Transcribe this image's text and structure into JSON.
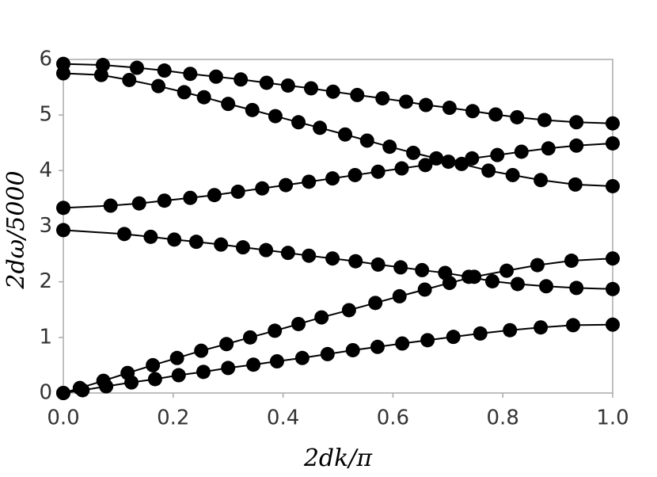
{
  "chart_data": {
    "type": "line",
    "xlabel": "2dk/π",
    "ylabel": "2dω/5000",
    "xlim": [
      0,
      1
    ],
    "ylim": [
      0,
      6
    ],
    "xticks": [
      {
        "value": 0,
        "label": "0.0"
      },
      0.2,
      0.4,
      0.6,
      0.8,
      {
        "value": 1,
        "label": "1.0"
      }
    ],
    "yticks": [
      0,
      1,
      2,
      3,
      4,
      5,
      6
    ],
    "markers": true,
    "series": [
      {
        "color": "#000000",
        "x": [
          0,
          0.072,
          0.134,
          0.184,
          0.231,
          0.278,
          0.323,
          0.37,
          0.409,
          0.451,
          0.491,
          0.535,
          0.581,
          0.624,
          0.66,
          0.703,
          0.745,
          0.787,
          0.826,
          0.876,
          0.934,
          1
        ],
        "y": [
          5.92,
          5.9,
          5.85,
          5.8,
          5.74,
          5.69,
          5.64,
          5.58,
          5.53,
          5.48,
          5.42,
          5.36,
          5.3,
          5.24,
          5.18,
          5.13,
          5.07,
          5.01,
          4.96,
          4.91,
          4.87,
          4.85
        ]
      },
      {
        "color": "#000000",
        "x": [
          0,
          0.069,
          0.12,
          0.173,
          0.22,
          0.256,
          0.3,
          0.344,
          0.386,
          0.428,
          0.467,
          0.513,
          0.553,
          0.594,
          0.637,
          0.679,
          0.725,
          0.774,
          0.818,
          0.869,
          0.932,
          1
        ],
        "y": [
          5.75,
          5.72,
          5.63,
          5.52,
          5.41,
          5.32,
          5.2,
          5.09,
          4.98,
          4.87,
          4.77,
          4.65,
          4.54,
          4.43,
          4.32,
          4.22,
          4.12,
          4.0,
          3.92,
          3.83,
          3.75,
          3.72
        ]
      },
      {
        "color": "#000000",
        "x": [
          0,
          0.086,
          0.138,
          0.184,
          0.231,
          0.275,
          0.318,
          0.362,
          0.405,
          0.447,
          0.49,
          0.531,
          0.573,
          0.616,
          0.659,
          0.701,
          0.744,
          0.79,
          0.834,
          0.883,
          0.934,
          1
        ],
        "y": [
          3.33,
          3.37,
          3.41,
          3.46,
          3.51,
          3.56,
          3.62,
          3.68,
          3.74,
          3.8,
          3.86,
          3.92,
          3.98,
          4.04,
          4.1,
          4.16,
          4.22,
          4.28,
          4.34,
          4.4,
          4.45,
          4.49
        ]
      },
      {
        "color": "#000000",
        "x": [
          0,
          0.111,
          0.159,
          0.202,
          0.242,
          0.287,
          0.327,
          0.369,
          0.409,
          0.447,
          0.49,
          0.532,
          0.573,
          0.614,
          0.653,
          0.695,
          0.738,
          0.781,
          0.827,
          0.879,
          0.934,
          1
        ],
        "y": [
          2.93,
          2.86,
          2.81,
          2.76,
          2.72,
          2.67,
          2.62,
          2.57,
          2.52,
          2.47,
          2.42,
          2.37,
          2.31,
          2.26,
          2.21,
          2.16,
          2.09,
          2.01,
          1.96,
          1.92,
          1.89,
          1.87
        ]
      },
      {
        "color": "#000000",
        "x": [
          0,
          0.03,
          0.073,
          0.117,
          0.163,
          0.207,
          0.251,
          0.297,
          0.34,
          0.385,
          0.428,
          0.47,
          0.52,
          0.568,
          0.612,
          0.658,
          0.703,
          0.748,
          0.807,
          0.863,
          0.925,
          1
        ],
        "y": [
          0,
          0.09,
          0.22,
          0.36,
          0.5,
          0.63,
          0.76,
          0.88,
          1.0,
          1.12,
          1.24,
          1.36,
          1.49,
          1.62,
          1.74,
          1.86,
          1.98,
          2.09,
          2.2,
          2.3,
          2.38,
          2.42
        ]
      },
      {
        "color": "#000000",
        "x": [
          0,
          0.035,
          0.078,
          0.124,
          0.167,
          0.21,
          0.255,
          0.3,
          0.346,
          0.389,
          0.435,
          0.481,
          0.527,
          0.572,
          0.617,
          0.663,
          0.71,
          0.759,
          0.813,
          0.869,
          0.928,
          1
        ],
        "y": [
          0,
          0.05,
          0.12,
          0.19,
          0.25,
          0.32,
          0.38,
          0.45,
          0.51,
          0.57,
          0.63,
          0.7,
          0.77,
          0.83,
          0.89,
          0.95,
          1.01,
          1.07,
          1.13,
          1.18,
          1.22,
          1.23
        ]
      }
    ]
  }
}
